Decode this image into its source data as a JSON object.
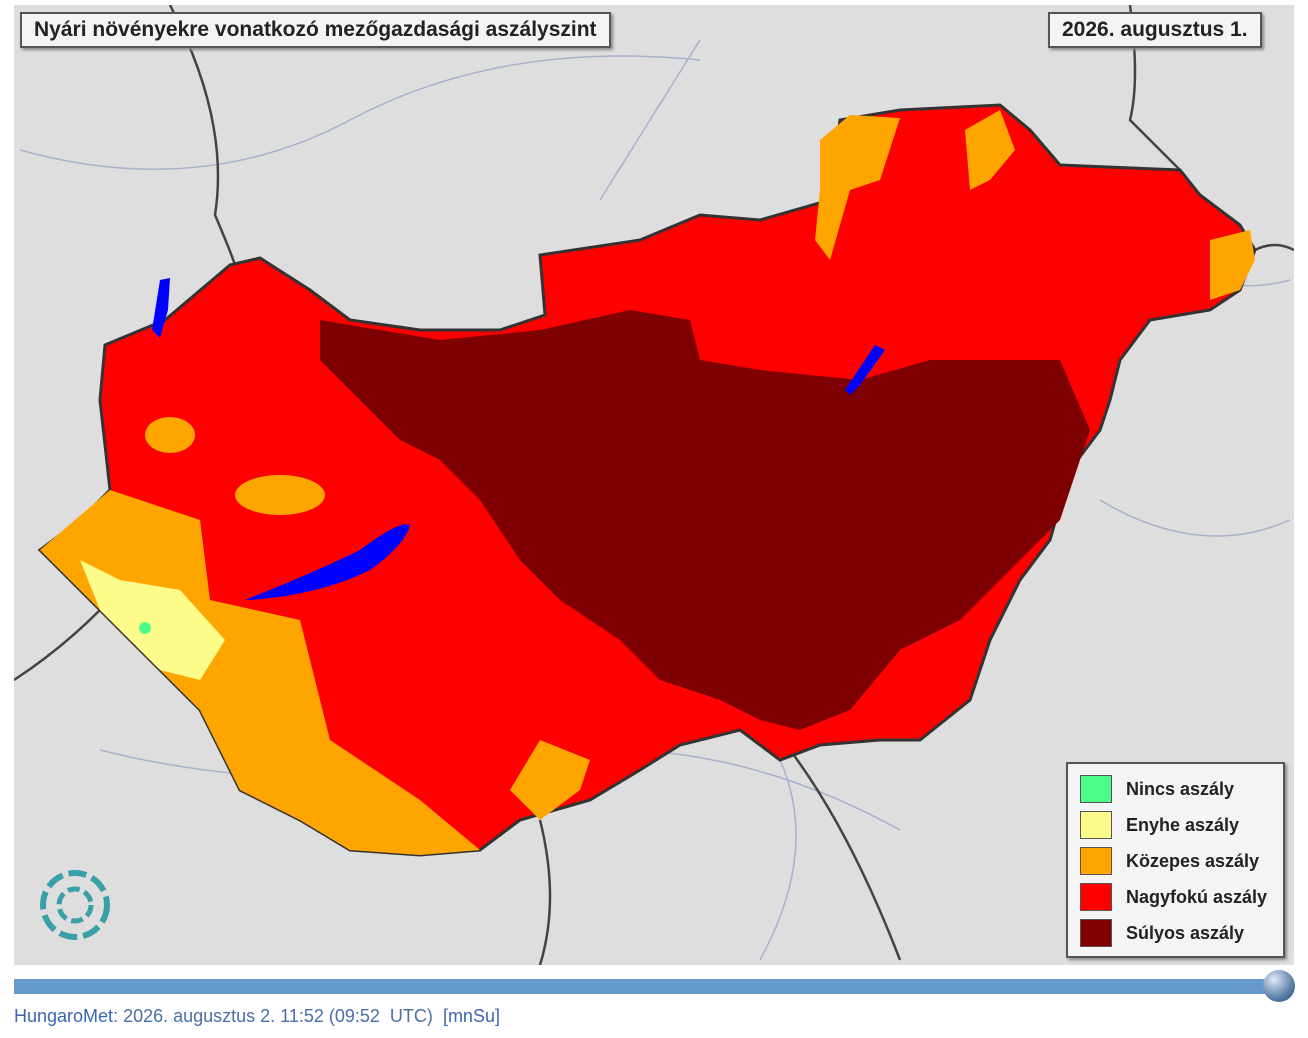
{
  "header": {
    "title": "Nyári növényekre vonatkozó mezőgazdasági aszályszint",
    "date": "2026. augusztus 1."
  },
  "legend": {
    "items": [
      {
        "label": "Nincs aszály",
        "color": "#4dfc86"
      },
      {
        "label": "Enyhe aszály",
        "color": "#fdfb8a"
      },
      {
        "label": "Közepes aszály",
        "color": "#fea500"
      },
      {
        "label": "Nagyfokú aszály",
        "color": "#fe0000"
      },
      {
        "label": "Súlyos aszály",
        "color": "#7f0000"
      }
    ]
  },
  "footer": {
    "source": "HungaroMet",
    "timestamp": ": 2026. augusztus 2. 11:52 (09:52  UTC)",
    "link": "[mnSu]"
  }
}
